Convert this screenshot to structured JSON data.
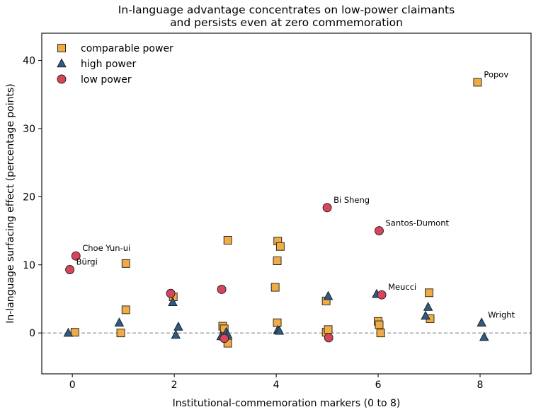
{
  "chart_data": {
    "type": "scatter",
    "title": [
      "In-language advantage concentrates on low-power claimants",
      "and persists even at zero commemoration"
    ],
    "xlabel": "Institutional-commemoration markers (0 to 8)",
    "ylabel": "In-language surfacing effect (percentage points)",
    "xlim": [
      -0.6,
      9.0
    ],
    "ylim": [
      -6.0,
      44.0
    ],
    "xticks": [
      0,
      2,
      4,
      6,
      8
    ],
    "yticks": [
      0,
      10,
      20,
      30,
      40
    ],
    "reference_line": {
      "y": 0,
      "style": "dashed",
      "color": "#888888"
    },
    "grid": false,
    "legend_position": "top-left",
    "series": [
      {
        "name": "comparable power",
        "marker": "square",
        "color": "#f0ab45",
        "points": [
          {
            "x": 0.05,
            "y": 0.1
          },
          {
            "x": 0.95,
            "y": 0.0
          },
          {
            "x": 1.05,
            "y": 3.4
          },
          {
            "x": 1.05,
            "y": 10.2
          },
          {
            "x": 1.98,
            "y": 5.3
          },
          {
            "x": 2.95,
            "y": 1.0
          },
          {
            "x": 2.98,
            "y": 0.6
          },
          {
            "x": 3.05,
            "y": -1.5
          },
          {
            "x": 3.05,
            "y": 13.6
          },
          {
            "x": 3.98,
            "y": 6.7
          },
          {
            "x": 4.02,
            "y": 1.5
          },
          {
            "x": 4.02,
            "y": 10.6
          },
          {
            "x": 4.03,
            "y": 13.5
          },
          {
            "x": 4.08,
            "y": 12.7
          },
          {
            "x": 4.98,
            "y": 4.7
          },
          {
            "x": 4.98,
            "y": 0.1
          },
          {
            "x": 5.02,
            "y": 0.5
          },
          {
            "x": 6.0,
            "y": 1.7
          },
          {
            "x": 6.02,
            "y": 1.2
          },
          {
            "x": 6.05,
            "y": 0.0
          },
          {
            "x": 7.0,
            "y": 5.9
          },
          {
            "x": 7.02,
            "y": 2.1
          },
          {
            "x": 7.95,
            "y": 36.8,
            "label": "Popov"
          }
        ]
      },
      {
        "name": "high power",
        "marker": "triangle",
        "color": "#2e5b85",
        "points": [
          {
            "x": -0.08,
            "y": 0.0
          },
          {
            "x": 0.92,
            "y": 1.5
          },
          {
            "x": 1.97,
            "y": 4.5
          },
          {
            "x": 2.03,
            "y": -0.3
          },
          {
            "x": 2.08,
            "y": 0.9
          },
          {
            "x": 2.92,
            "y": -0.5
          },
          {
            "x": 3.02,
            "y": 0.1
          },
          {
            "x": 3.05,
            "y": -0.3
          },
          {
            "x": 4.03,
            "y": 0.4
          },
          {
            "x": 4.06,
            "y": 0.3
          },
          {
            "x": 5.02,
            "y": 5.4
          },
          {
            "x": 5.97,
            "y": 5.7
          },
          {
            "x": 6.93,
            "y": 2.5
          },
          {
            "x": 6.98,
            "y": 3.8
          },
          {
            "x": 8.03,
            "y": 1.5,
            "label": "Wright"
          },
          {
            "x": 8.08,
            "y": -0.6
          }
        ]
      },
      {
        "name": "low power",
        "marker": "circle",
        "color": "#d6455a",
        "points": [
          {
            "x": -0.05,
            "y": 9.3,
            "label": "Bürgi"
          },
          {
            "x": 0.07,
            "y": 11.3,
            "label": "Choe Yun-ui"
          },
          {
            "x": 1.93,
            "y": 5.8
          },
          {
            "x": 2.93,
            "y": 6.4
          },
          {
            "x": 2.98,
            "y": -0.8
          },
          {
            "x": 5.0,
            "y": 18.4,
            "label": "Bi Sheng"
          },
          {
            "x": 5.03,
            "y": -0.7
          },
          {
            "x": 6.02,
            "y": 15.0,
            "label": "Santos-Dumont"
          },
          {
            "x": 6.07,
            "y": 5.6,
            "label": "Meucci"
          }
        ]
      }
    ]
  }
}
